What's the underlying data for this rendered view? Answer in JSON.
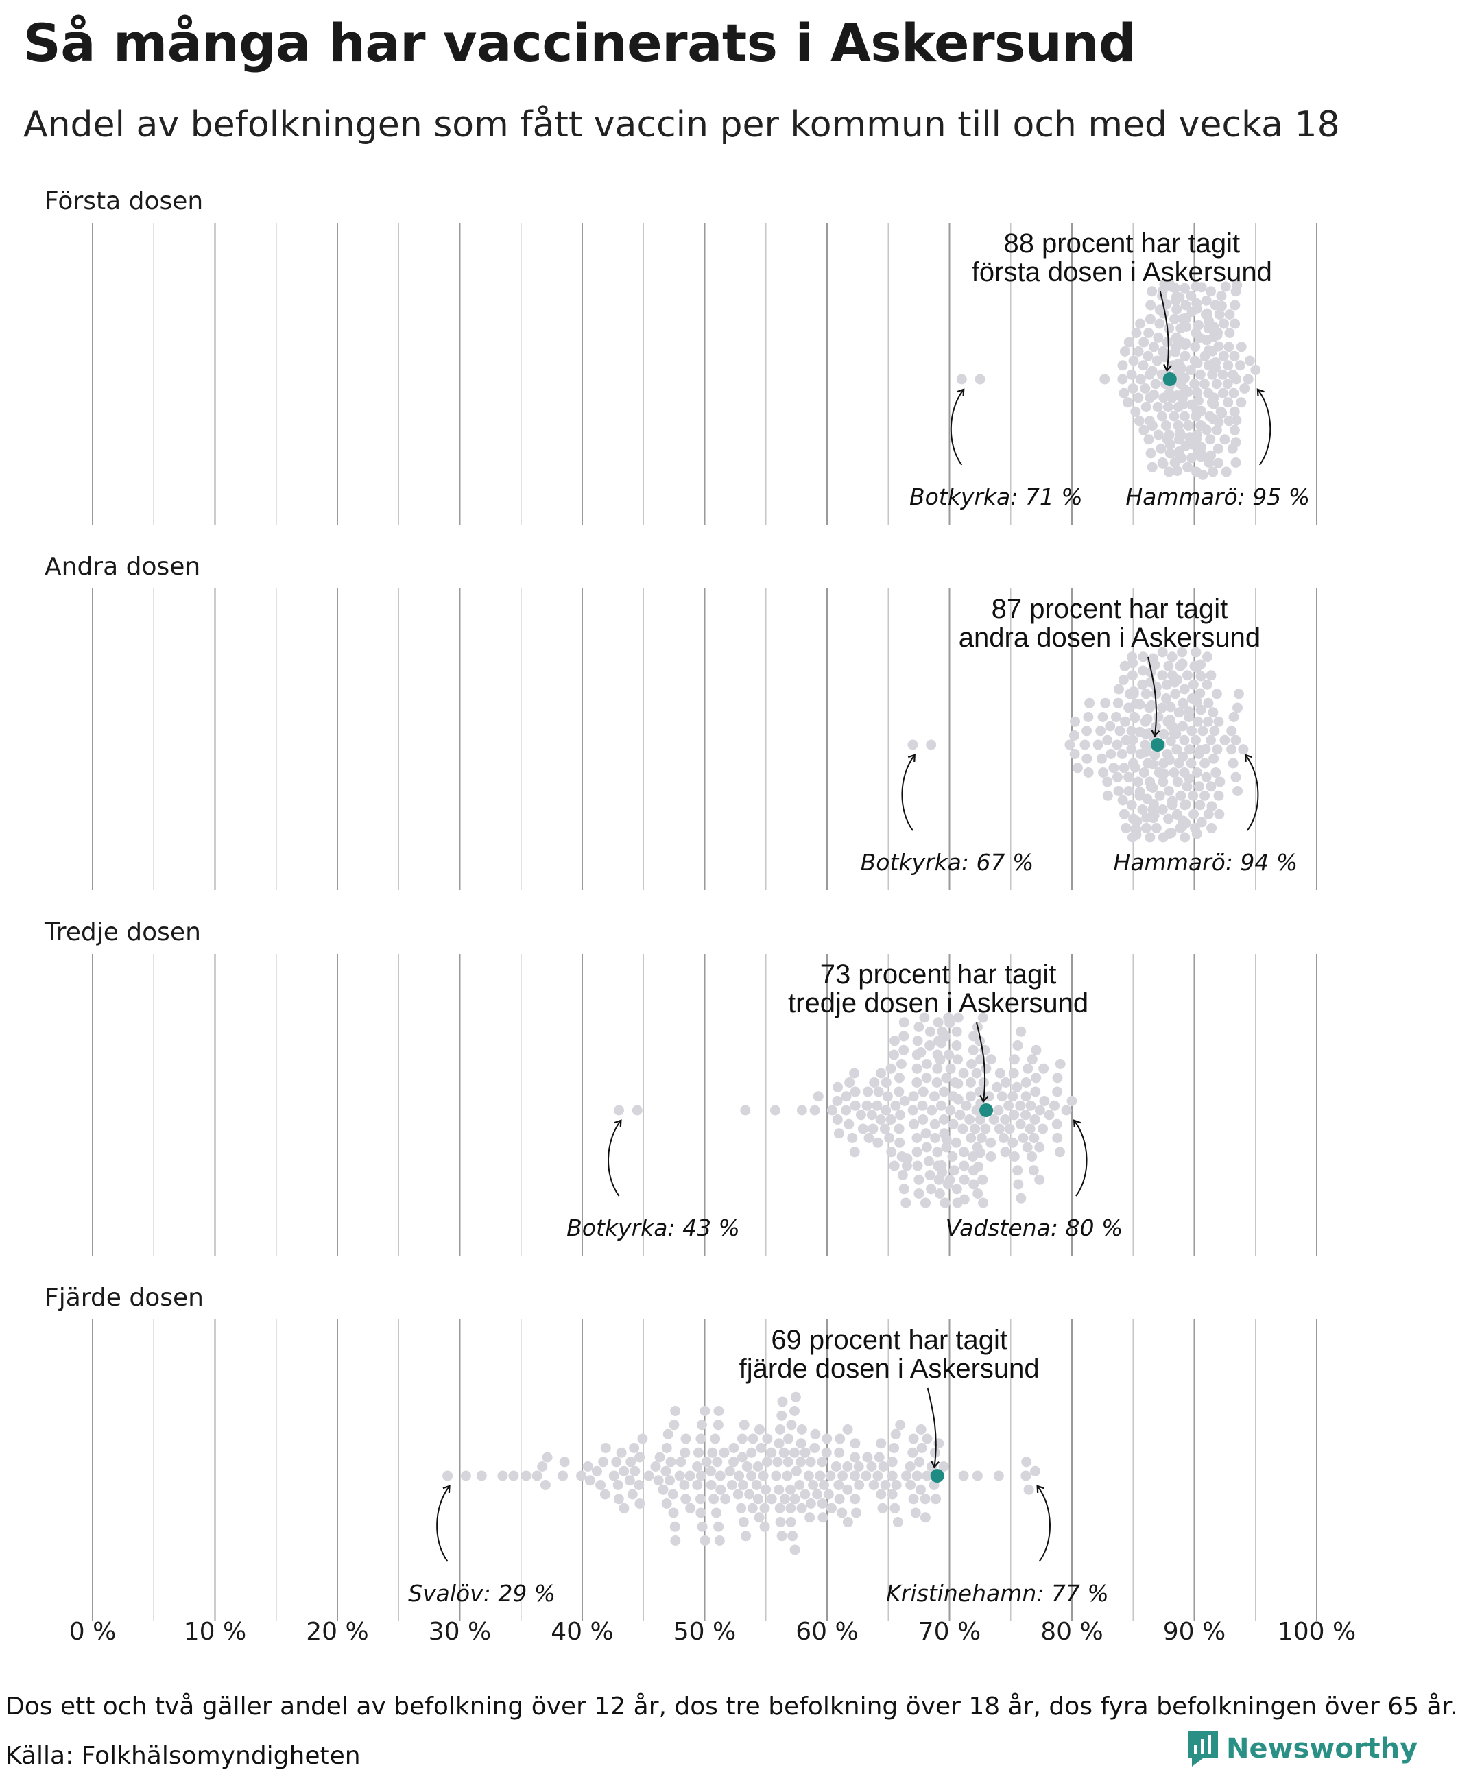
{
  "title": "Så många har vaccinerats i Askersund",
  "subtitle": "Andel av befolkningen som fått vaccin per kommun till och med vecka 18",
  "footnote": "Dos ett och två gäller andel av befolkning över 12 år, dos tre befolkning över 18 år, dos fyra befolkningen över 65 år.",
  "source": "Källa: Folkhälsomyndigheten",
  "brand": "Newsworthy",
  "colors": {
    "highlight": "#1e8c82",
    "dot": "#d6d5db",
    "grid": "#c6c6c6",
    "brand": "#2a8f84"
  },
  "chart_data": {
    "type": "scatter",
    "subtype": "beeswarm",
    "x_axis": {
      "range": [
        0,
        100
      ],
      "ticks": [
        0,
        10,
        20,
        30,
        40,
        50,
        60,
        70,
        80,
        90,
        100
      ],
      "tick_labels": [
        "0 %",
        "10 %",
        "20 %",
        "30 %",
        "40 %",
        "50 %",
        "60 %",
        "70 %",
        "80 %",
        "90 %",
        "100 %"
      ],
      "gridlines_every": 5
    },
    "panels": [
      {
        "title": "Första dosen",
        "highlight": {
          "name": "Askersund",
          "value": 88,
          "annotation": [
            "88 procent har tagit",
            "första dosen i Askersund"
          ]
        },
        "min": {
          "name": "Botkyrka",
          "value": 71,
          "label": "Botkyrka: 71 %"
        },
        "max": {
          "name": "Hammarö",
          "value": 95,
          "label": "Hammarö: 95 %"
        },
        "distribution": {
          "center": 89.5,
          "spread": 2.6,
          "n": 240
        }
      },
      {
        "title": "Andra dosen",
        "highlight": {
          "name": "Askersund",
          "value": 87,
          "annotation": [
            "87 procent har tagit",
            "andra dosen i Askersund"
          ]
        },
        "min": {
          "name": "Botkyrka",
          "value": 67,
          "label": "Botkyrka: 67 %"
        },
        "max": {
          "name": "Hammarö",
          "value": 94,
          "label": "Hammarö: 94 %"
        },
        "distribution": {
          "center": 87.5,
          "spread": 3.0,
          "n": 240
        }
      },
      {
        "title": "Tredje dosen",
        "highlight": {
          "name": "Askersund",
          "value": 73,
          "annotation": [
            "73 procent har tagit",
            "tredje dosen i Askersund"
          ]
        },
        "min": {
          "name": "Botkyrka",
          "value": 43,
          "label": "Botkyrka: 43 %"
        },
        "max": {
          "name": "Vadstena",
          "value": 80,
          "label": "Vadstena: 80 %"
        },
        "distribution": {
          "center": 70,
          "spread": 5.0,
          "n": 240
        }
      },
      {
        "title": "Fjärde dosen",
        "highlight": {
          "name": "Askersund",
          "value": 69,
          "annotation": [
            "69 procent har tagit",
            "fjärde dosen i Askersund"
          ]
        },
        "min": {
          "name": "Svalöv",
          "value": 29,
          "label": "Svalöv: 29 %"
        },
        "max": {
          "name": "Kristinehamn",
          "value": 77,
          "label": "Kristinehamn: 77 %"
        },
        "distribution": {
          "center": 56,
          "spread": 8.5,
          "n": 240
        }
      }
    ]
  }
}
